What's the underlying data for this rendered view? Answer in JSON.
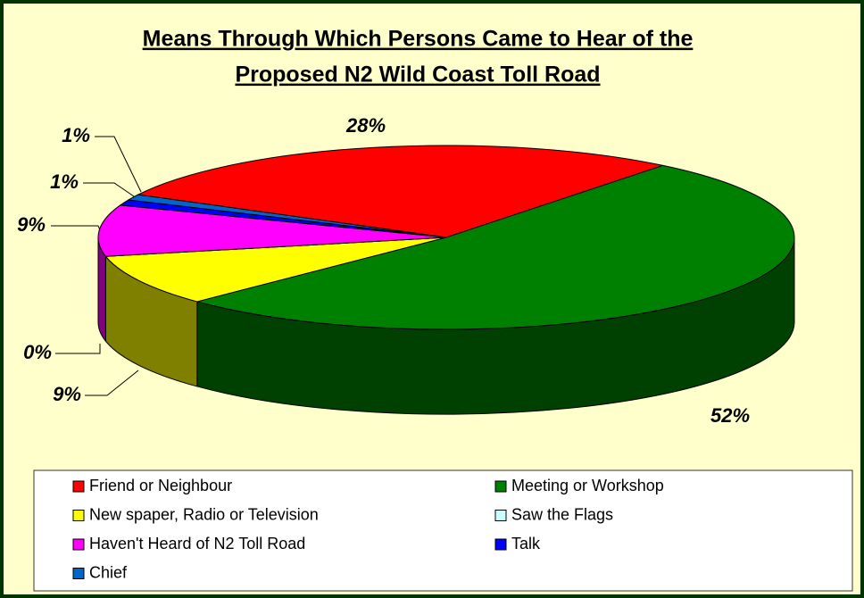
{
  "chart_data": {
    "type": "pie3d",
    "title": [
      "Means Through Which Persons Came to Hear of the",
      "Proposed N2 Wild Coast Toll Road"
    ],
    "series": [
      {
        "name": "Friend or Neighbour",
        "color": "#ff0000",
        "values": [
          28
        ],
        "value_labels": [
          "28%"
        ]
      },
      {
        "name": "Meeting or Workshop",
        "color": "#008000",
        "values": [
          52
        ],
        "value_labels": [
          "52%"
        ]
      },
      {
        "name": "New spaper, Radio or Television",
        "color": "#ffff00",
        "values": [
          9
        ],
        "value_labels": [
          "9%"
        ]
      },
      {
        "name": "Saw  the Flags",
        "color": "#ccffff",
        "values": [
          0
        ],
        "value_labels": [
          "0%"
        ]
      },
      {
        "name": "Haven't Heard of N2 Toll Road",
        "color": "#ff00ff",
        "values": [
          9
        ],
        "value_labels": [
          "9%"
        ]
      },
      {
        "name": "Talk",
        "color": "#0000ff",
        "values": [
          1
        ],
        "value_labels": [
          "1%"
        ]
      },
      {
        "name": "Chief",
        "color": "#0066cc",
        "values": [
          1
        ],
        "value_labels": [
          "1%"
        ]
      }
    ],
    "legend": "bottom"
  }
}
